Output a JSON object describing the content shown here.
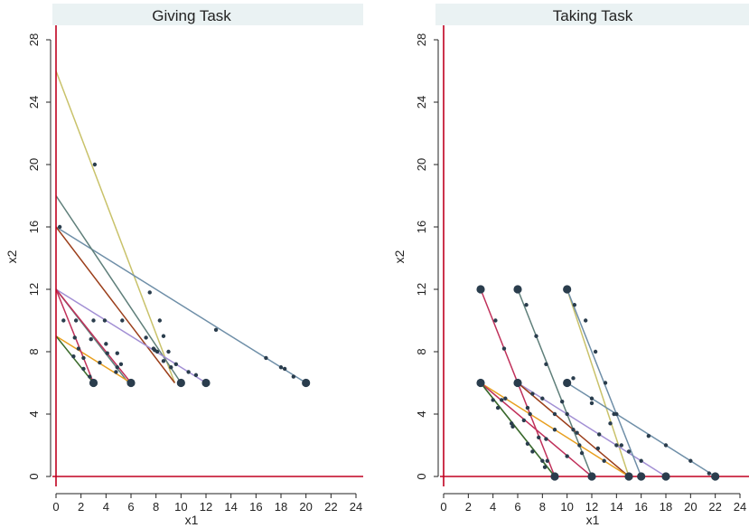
{
  "chart_data": [
    {
      "type": "line",
      "title": "Giving Task",
      "xlabel": "x1",
      "ylabel": "x2",
      "xlim": [
        0,
        24
      ],
      "ylim": [
        0,
        28
      ],
      "xticks": [
        "0",
        "2",
        "4",
        "6",
        "8",
        "10",
        "12",
        "14",
        "16",
        "18",
        "20",
        "22",
        "24"
      ],
      "yticks": [
        "0",
        "4",
        "8",
        "12",
        "16",
        "20",
        "24",
        "28"
      ],
      "reference_lines": {
        "x": 0,
        "y": 0,
        "color": "#c00020"
      },
      "series": [
        {
          "color": "#c9c26a",
          "x": [
            0,
            9.5
          ],
          "y": [
            26,
            6
          ],
          "points": [
            [
              3.1,
              20
            ],
            [
              7.5,
              11.8
            ],
            [
              8.3,
              10
            ],
            [
              8.6,
              9
            ],
            [
              9,
              8
            ]
          ]
        },
        {
          "color": "#6f8fa8",
          "x": [
            0,
            20
          ],
          "y": [
            16,
            6
          ],
          "points": [
            [
              12.8,
              9.4
            ],
            [
              16.8,
              7.6
            ],
            [
              18,
              7
            ],
            [
              18.3,
              6.9
            ],
            [
              19,
              6.4
            ]
          ]
        },
        {
          "color": "#5f7f7a",
          "x": [
            0,
            10
          ],
          "y": [
            18,
            6
          ],
          "points": [
            [
              0.3,
              16
            ],
            [
              3.9,
              10
            ],
            [
              7.8,
              8.2
            ],
            [
              8.6,
              7.4
            ],
            [
              9.2,
              7
            ]
          ]
        },
        {
          "color": "#9b3e1a",
          "x": [
            0,
            9.5
          ],
          "y": [
            16,
            6
          ],
          "points": [
            [
              5.3,
              10
            ],
            [
              7.2,
              8.9
            ],
            [
              8.1,
              8
            ]
          ]
        },
        {
          "color": "#a28fd4",
          "x": [
            0,
            12
          ],
          "y": [
            12,
            6
          ],
          "points": [
            [
              7.9,
              8.1
            ],
            [
              9.6,
              7.2
            ],
            [
              10.6,
              6.7
            ],
            [
              11.2,
              6.5
            ]
          ]
        },
        {
          "color": "#5f7f7a",
          "x": [
            0,
            5.8
          ],
          "y": [
            12,
            6
          ],
          "points": [
            [
              3,
              10
            ],
            [
              4,
              8.5
            ],
            [
              4.9,
              7.9
            ],
            [
              5.2,
              7.2
            ]
          ]
        },
        {
          "color": "#c0305a",
          "x": [
            0,
            6
          ],
          "y": [
            12,
            6
          ],
          "points": [
            [
              1.6,
              10
            ],
            [
              2.8,
              8.8
            ],
            [
              4.1,
              7.9
            ],
            [
              4.9,
              7
            ]
          ]
        },
        {
          "color": "#e8a020",
          "x": [
            0,
            6
          ],
          "y": [
            9,
            6
          ],
          "points": [
            [
              1.8,
              8.2
            ],
            [
              3.5,
              7.3
            ],
            [
              4.8,
              6.7
            ]
          ]
        },
        {
          "color": "#c0305a",
          "x": [
            0,
            3
          ],
          "y": [
            12,
            6
          ],
          "points": [
            [
              0.6,
              10
            ],
            [
              1.5,
              8.9
            ],
            [
              2.2,
              7.6
            ]
          ]
        },
        {
          "color": "#3a6a2a",
          "x": [
            0,
            3
          ],
          "y": [
            9,
            6
          ],
          "points": [
            [
              1.4,
              7.7
            ],
            [
              2.2,
              6.9
            ],
            [
              2.7,
              6.4
            ]
          ]
        }
      ],
      "endpoints": [
        [
          3,
          6
        ],
        [
          6,
          6
        ],
        [
          10,
          6
        ],
        [
          12,
          6
        ],
        [
          20,
          6
        ]
      ]
    },
    {
      "type": "line",
      "title": "Taking Task",
      "xlabel": "x1",
      "ylabel": "x2",
      "xlim": [
        0,
        24
      ],
      "ylim": [
        0,
        28
      ],
      "xticks": [
        "0",
        "2",
        "4",
        "6",
        "8",
        "10",
        "12",
        "14",
        "16",
        "18",
        "20",
        "22",
        "24"
      ],
      "yticks": [
        "0",
        "4",
        "8",
        "12",
        "16",
        "20",
        "24",
        "28"
      ],
      "reference_lines": {
        "x": 0,
        "y": 0,
        "color": "#c00020"
      },
      "series": [
        {
          "color": "#c9c26a",
          "x": [
            10,
            15
          ],
          "y": [
            12,
            0
          ],
          "points": [
            [
              10.6,
              11
            ],
            [
              11.5,
              10
            ],
            [
              12.3,
              8
            ],
            [
              13.1,
              6
            ],
            [
              13.8,
              4
            ],
            [
              14.4,
              2
            ]
          ]
        },
        {
          "color": "#5f7f7a",
          "x": [
            6,
            12
          ],
          "y": [
            12,
            0
          ],
          "points": [
            [
              6.7,
              11
            ],
            [
              7.5,
              9
            ],
            [
              8.3,
              7.2
            ],
            [
              9.6,
              4.8
            ],
            [
              10.5,
              3
            ],
            [
              11.2,
              1.5
            ]
          ]
        },
        {
          "color": "#c0305a",
          "x": [
            3,
            9
          ],
          "y": [
            12,
            0
          ],
          "points": [
            [
              4.2,
              10
            ],
            [
              4.9,
              8.2
            ],
            [
              5.9,
              6
            ],
            [
              6.8,
              4.4
            ],
            [
              7.7,
              2.5
            ],
            [
              8.4,
              1
            ]
          ]
        },
        {
          "color": "#6f8fa8",
          "x": [
            10,
            22
          ],
          "y": [
            6,
            0
          ],
          "points": [
            [
              12,
              5
            ],
            [
              14,
              4
            ],
            [
              16.6,
              2.6
            ],
            [
              18,
              2
            ],
            [
              20,
              1
            ],
            [
              21.5,
              0.2
            ]
          ]
        },
        {
          "color": "#a28fd4",
          "x": [
            6,
            18
          ],
          "y": [
            6,
            0
          ],
          "points": [
            [
              8,
              5
            ],
            [
              10,
              4
            ],
            [
              12.6,
              2.7
            ],
            [
              14,
              2
            ],
            [
              16,
              1
            ]
          ]
        },
        {
          "color": "#9b3e1a",
          "x": [
            6,
            15
          ],
          "y": [
            6,
            0
          ],
          "points": [
            [
              7.2,
              5.3
            ],
            [
              9,
              4
            ],
            [
              10.8,
              2.8
            ],
            [
              12.5,
              1.8
            ]
          ]
        },
        {
          "color": "#e8a020",
          "x": [
            3,
            15
          ],
          "y": [
            6,
            0
          ],
          "points": [
            [
              5,
              5
            ],
            [
              7,
              4
            ],
            [
              9,
              3
            ],
            [
              11,
              2
            ],
            [
              13,
              1
            ]
          ]
        },
        {
          "color": "#c0305a",
          "x": [
            3,
            12
          ],
          "y": [
            6,
            0
          ],
          "points": [
            [
              4.7,
              4.9
            ],
            [
              6.5,
              3.6
            ],
            [
              8.3,
              2.4
            ],
            [
              10,
              1.3
            ]
          ]
        },
        {
          "color": "#5f7f7a",
          "x": [
            3,
            9
          ],
          "y": [
            6,
            0
          ],
          "points": [
            [
              4,
              4.9
            ],
            [
              5.5,
              3.4
            ],
            [
              6.8,
              2.1
            ],
            [
              8,
              1
            ]
          ]
        },
        {
          "color": "#3a6a2a",
          "x": [
            3,
            9
          ],
          "y": [
            6,
            0
          ],
          "points": [
            [
              4.4,
              4.4
            ],
            [
              5.6,
              3.2
            ],
            [
              7.2,
              1.6
            ],
            [
              8.2,
              0.6
            ]
          ]
        },
        {
          "color": "#6f8fa8",
          "x": [
            10,
            16
          ],
          "y": [
            12,
            0
          ],
          "points": [
            [
              10.5,
              6.3
            ],
            [
              12,
              4.7
            ],
            [
              13.5,
              3.4
            ],
            [
              15,
              1.6
            ]
          ]
        }
      ],
      "endpoints": [
        [
          3,
          12
        ],
        [
          6,
          12
        ],
        [
          10,
          12
        ],
        [
          3,
          6
        ],
        [
          6,
          6
        ],
        [
          10,
          6
        ],
        [
          9,
          0
        ],
        [
          12,
          0
        ],
        [
          15,
          0
        ],
        [
          16,
          0
        ],
        [
          18,
          0
        ],
        [
          22,
          0
        ]
      ]
    }
  ]
}
